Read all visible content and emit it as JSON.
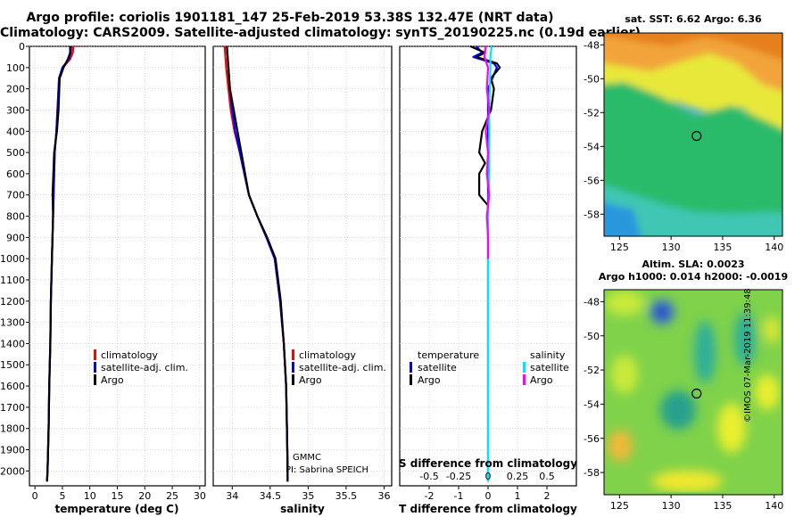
{
  "header": {
    "line1": "Argo profile: coriolis 1901181_147 25-Feb-2019 53.38S 132.47E (NRT data)",
    "line2": "Climatology: CARS2009. Satellite-adjusted climatology: synTS_20190225.nc (0.19d earlier)"
  },
  "colors": {
    "climatology": "#ff0000",
    "satellite": "#0000ff",
    "argo": "#000000",
    "sal_satellite": "#00e5ff",
    "sal_argo": "#ff00ff",
    "marker": "#000000"
  },
  "panel1": {
    "xlabel": "temperature (deg C)",
    "legend": [
      "climatology",
      "satellite-adj. clim.",
      "Argo"
    ]
  },
  "panel2": {
    "xlabel": "salinity",
    "legend": [
      "climatology",
      "satellite-adj. clim.",
      "Argo"
    ],
    "credit1": "GMMC",
    "credit2": "PI: Sabrina SPEICH"
  },
  "panel3": {
    "xlabel": "T difference from climatology",
    "s_label": "S difference from climatology",
    "temp_legend_title": "temperature",
    "sal_legend_title": "salinity",
    "temp_legend": [
      "satellite",
      "Argo"
    ],
    "sal_legend": [
      "satellite",
      "Argo"
    ]
  },
  "map1": {
    "title": "sat. SST: 6.62 Argo: 6.36"
  },
  "map2": {
    "title1": "Altim. SLA: 0.0023",
    "title2": "Argo h1000: 0.014 h2000: -0.0019"
  },
  "footer": {
    "credit": "©IMOS 07-Mar-2019 11:39:48"
  },
  "chart_data": [
    {
      "type": "line",
      "name": "temperature",
      "xlabel": "temperature (deg C)",
      "ylabel": "",
      "xlim": [
        -1,
        31
      ],
      "ylim": [
        2070,
        0
      ],
      "xticks": [
        0,
        5,
        10,
        15,
        20,
        25,
        30
      ],
      "yticks": [
        0,
        100,
        200,
        300,
        400,
        500,
        600,
        700,
        800,
        900,
        1000,
        1100,
        1200,
        1300,
        1400,
        1500,
        1600,
        1700,
        1800,
        1900,
        2000
      ],
      "series": [
        {
          "name": "climatology",
          "color": "#ff0000",
          "x": [
            7.0,
            6.9,
            6.4,
            5.1,
            4.4,
            4.1,
            3.9,
            3.6,
            3.4,
            3.3,
            3.1,
            2.9,
            2.8,
            2.6,
            2.5,
            2.4,
            2.3,
            2.2
          ],
          "y": [
            0,
            30,
            60,
            100,
            150,
            300,
            400,
            500,
            700,
            800,
            1000,
            1200,
            1400,
            1600,
            1800,
            1900,
            2000,
            2050
          ]
        },
        {
          "name": "satellite-adj. clim.",
          "color": "#0000ff",
          "x": [
            6.6,
            6.5,
            6.2,
            5.0,
            4.4,
            4.1,
            3.9,
            3.6,
            3.4,
            3.3,
            3.1,
            2.9,
            2.8,
            2.6,
            2.5,
            2.4,
            2.3,
            2.2
          ],
          "y": [
            0,
            30,
            60,
            100,
            150,
            300,
            400,
            500,
            700,
            800,
            1000,
            1200,
            1400,
            1600,
            1800,
            1900,
            2000,
            2050
          ]
        },
        {
          "name": "Argo",
          "color": "#000000",
          "x": [
            6.4,
            6.4,
            6.0,
            5.2,
            4.5,
            4.3,
            4.0,
            3.5,
            3.2,
            3.3,
            3.1,
            2.9,
            2.8,
            2.6,
            2.5,
            2.4,
            2.3,
            2.2
          ],
          "y": [
            0,
            30,
            60,
            100,
            150,
            300,
            400,
            500,
            700,
            800,
            1000,
            1200,
            1400,
            1600,
            1800,
            1900,
            2000,
            2050
          ]
        }
      ]
    },
    {
      "type": "line",
      "name": "salinity",
      "xlabel": "salinity",
      "xlim": [
        33.75,
        36.1
      ],
      "ylim": [
        2070,
        0
      ],
      "xticks": [
        34,
        34.5,
        35,
        35.5,
        36
      ],
      "series": [
        {
          "name": "climatology",
          "color": "#ff0000",
          "x": [
            33.9,
            33.92,
            33.95,
            33.98,
            34.03,
            34.1,
            34.22,
            34.33,
            34.45,
            34.56,
            34.63,
            34.68,
            34.71,
            34.72,
            34.73,
            34.73
          ],
          "y": [
            0,
            100,
            200,
            300,
            400,
            500,
            700,
            800,
            900,
            1000,
            1200,
            1400,
            1600,
            1800,
            2000,
            2050
          ]
        },
        {
          "name": "satellite-adj. clim.",
          "color": "#0000ff",
          "x": [
            33.93,
            33.95,
            33.97,
            34.0,
            34.04,
            34.1,
            34.22,
            34.33,
            34.45,
            34.56,
            34.63,
            34.68,
            34.71,
            34.72,
            34.73,
            34.73
          ],
          "y": [
            0,
            100,
            200,
            300,
            400,
            500,
            700,
            800,
            900,
            1000,
            1200,
            1400,
            1600,
            1800,
            2000,
            2050
          ]
        },
        {
          "name": "Argo",
          "color": "#000000",
          "x": [
            33.93,
            33.95,
            33.97,
            34.02,
            34.07,
            34.12,
            34.22,
            34.33,
            34.46,
            34.57,
            34.64,
            34.68,
            34.71,
            34.72,
            34.73,
            34.73
          ],
          "y": [
            0,
            100,
            200,
            300,
            400,
            500,
            700,
            800,
            900,
            1000,
            1200,
            1400,
            1600,
            1800,
            2000,
            2050
          ]
        }
      ]
    },
    {
      "type": "line",
      "name": "difference",
      "xlabel": "T difference from climatology",
      "s_axis_label": "S difference from climatology",
      "xlim": [
        -3,
        3
      ],
      "ylim": [
        2070,
        0
      ],
      "xticks": [
        -2,
        -1,
        0,
        1,
        2
      ],
      "s_xticks": [
        -0.5,
        -0.25,
        0,
        0.25,
        0.5
      ],
      "s_scale_factor": 4,
      "series": [
        {
          "name": "temperature satellite",
          "color": "#0000ff",
          "x": [
            -0.4,
            -0.2,
            -0.5,
            0.2,
            0.3,
            0.0,
            0.0,
            0.0,
            0.0,
            0.0,
            0.0,
            0.0
          ],
          "y": [
            0,
            30,
            50,
            80,
            100,
            200,
            500,
            800,
            1000,
            1500,
            2000,
            2050
          ]
        },
        {
          "name": "temperature Argo",
          "color": "#000000",
          "x": [
            -0.6,
            -0.1,
            -0.4,
            0.3,
            0.4,
            0.1,
            0.2,
            0.1,
            -0.2,
            -0.3,
            -0.1,
            -0.3,
            -0.3,
            0.0,
            0.0
          ],
          "y": [
            0,
            30,
            50,
            80,
            100,
            150,
            200,
            300,
            400,
            500,
            550,
            600,
            700,
            750,
            800
          ]
        },
        {
          "name": "salinity satellite",
          "color": "#00e5ff",
          "x": [
            0.03,
            0.02,
            0.02,
            0.01,
            0.01,
            0.0,
            0.0,
            0.0,
            0.0
          ],
          "y": [
            0,
            50,
            100,
            300,
            600,
            800,
            1200,
            1600,
            2050
          ]
        },
        {
          "name": "salinity Argo",
          "color": "#ff00ff",
          "x": [
            -0.02,
            -0.03,
            0.0,
            -0.01,
            0.01,
            -0.02,
            0.0,
            -0.01,
            0.01,
            -0.01,
            0.0,
            0.0
          ],
          "y": [
            0,
            50,
            100,
            200,
            300,
            400,
            500,
            600,
            700,
            800,
            900,
            1000
          ]
        }
      ]
    },
    {
      "type": "heatmap",
      "name": "sat. SST",
      "title": "sat. SST: 6.62 Argo: 6.36",
      "xlim": [
        123.5,
        140.8
      ],
      "ylim": [
        -59.3,
        -47.3
      ],
      "xticks": [
        125,
        130,
        135,
        140
      ],
      "yticks": [
        -48,
        -50,
        -52,
        -54,
        -56,
        -58
      ],
      "marker": {
        "lon": 132.47,
        "lat": -53.38
      }
    },
    {
      "type": "heatmap",
      "name": "Altim. SLA",
      "title": "Altim. SLA: 0.0023",
      "xlim": [
        123.5,
        140.8
      ],
      "ylim": [
        -59.3,
        -47.3
      ],
      "xticks": [
        125,
        130,
        135,
        140
      ],
      "yticks": [
        -48,
        -50,
        -52,
        -54,
        -56,
        -58
      ],
      "marker": {
        "lon": 132.47,
        "lat": -53.38
      }
    }
  ]
}
